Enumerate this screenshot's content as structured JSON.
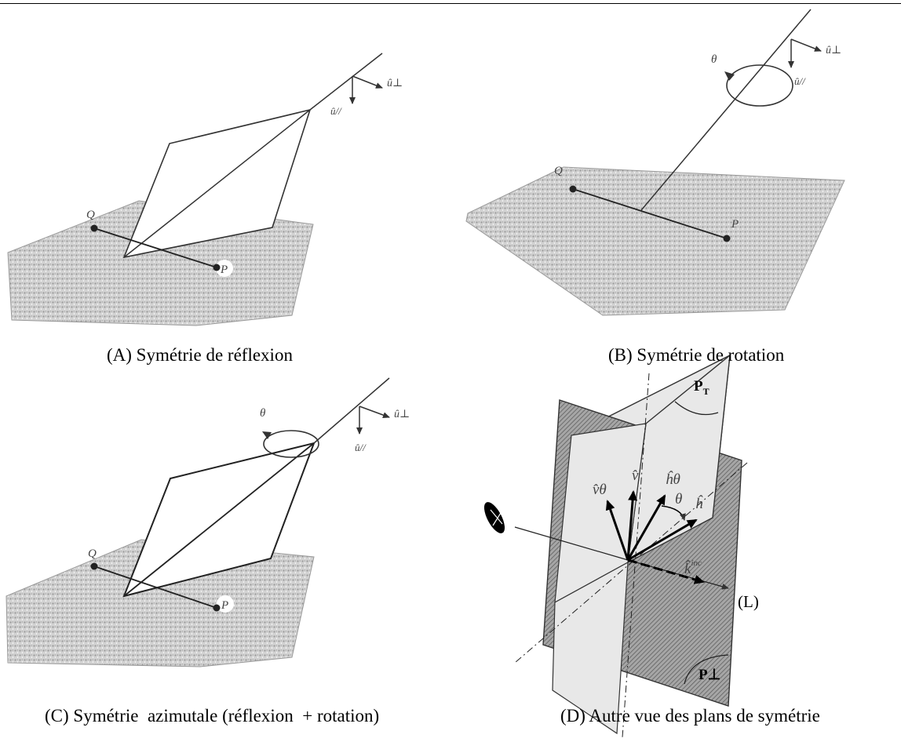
{
  "captions": {
    "a": "(A) Symétrie de réflexion",
    "b": "(B) Symétrie de rotation",
    "c": "(C) Symétrie  azimutale (réflexion  + rotation)",
    "d": "(D) Autre vue des plans de symétrie"
  },
  "labels": {
    "q": "Q",
    "p": "P",
    "u_perp": "û⊥",
    "u_par": "û//",
    "theta": "θ",
    "v_theta": "v̂θ",
    "v": "v̂",
    "h_theta": "ĥθ",
    "h": "ĥ",
    "k_inc": "k̂",
    "k_inc_sup": "inc",
    "line_l": "(L)",
    "plane_t": "P",
    "plane_t_sub": "T",
    "plane_perp": "P⊥"
  },
  "colors": {
    "surface": "#c9c9c9",
    "plane_light": "#e6e6e6",
    "plane_dark": "#8c8c8c",
    "ink": "#333333"
  }
}
